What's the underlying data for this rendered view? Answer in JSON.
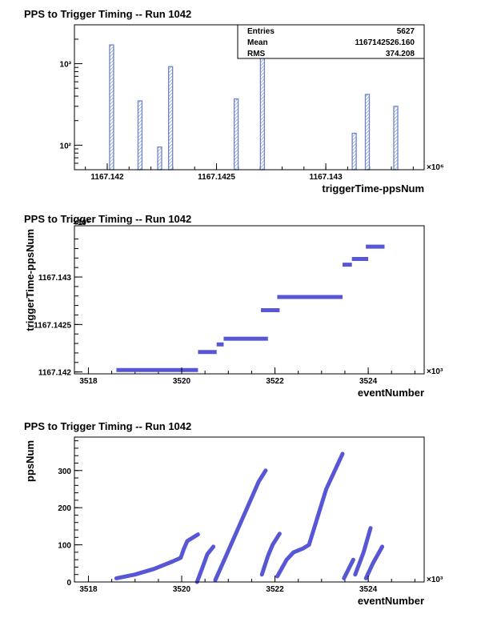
{
  "chart_data": [
    {
      "type": "histogram",
      "title": "PPS to Trigger Timing -- Run 1042",
      "xlabel": "triggerTime-ppsNum",
      "ylabel": "",
      "x_multiplier_label": "×10⁶",
      "xlim": [
        1167141.85,
        1167143.45
      ],
      "ylim": [
        50,
        3000
      ],
      "y_scale": "log",
      "x_ticks": [
        {
          "value": 1167142.0,
          "label": "1167.142"
        },
        {
          "value": 1167142.5,
          "label": "1167.1425"
        },
        {
          "value": 1167143.0,
          "label": "1167.143"
        }
      ],
      "y_ticks": [
        {
          "value": 100,
          "label": "10²"
        },
        {
          "value": 1000,
          "label": "10³"
        }
      ],
      "bins": [
        {
          "x": 1167142.02,
          "count": 1700
        },
        {
          "x": 1167142.15,
          "count": 350
        },
        {
          "x": 1167142.24,
          "count": 95
        },
        {
          "x": 1167142.29,
          "count": 920
        },
        {
          "x": 1167142.59,
          "count": 370
        },
        {
          "x": 1167142.71,
          "count": 1300
        },
        {
          "x": 1167143.13,
          "count": 140
        },
        {
          "x": 1167143.19,
          "count": 420
        },
        {
          "x": 1167143.32,
          "count": 300
        }
      ],
      "stats": [
        {
          "label": "Entries",
          "value": "5627"
        },
        {
          "label": "Mean",
          "value": "1167142526.160"
        },
        {
          "label": "RMS",
          "value": "374.208"
        }
      ],
      "color": "#6c86c7"
    },
    {
      "type": "scatter",
      "title": "PPS to Trigger Timing -- Run 1042",
      "xlabel": "eventNumber",
      "ylabel": "triggerTime-ppsNum",
      "x_multiplier_label": "×10³",
      "y_multiplier_label": "×10⁶",
      "xlim": [
        3517.7,
        3525.2
      ],
      "ylim": [
        1167141.98,
        1167143.54
      ],
      "x_ticks": [
        {
          "value": 3518,
          "label": "3518"
        },
        {
          "value": 3520,
          "label": "3520"
        },
        {
          "value": 3522,
          "label": "3522"
        },
        {
          "value": 3524,
          "label": "3524"
        }
      ],
      "y_ticks": [
        {
          "value": 1167142.0,
          "label": "1167.142"
        },
        {
          "value": 1167142.5,
          "label": "1167.1425"
        },
        {
          "value": 1167143.0,
          "label": "1167.143"
        }
      ],
      "segments": [
        {
          "x0": 3518.6,
          "x1": 3520.35,
          "y": 1167142.02
        },
        {
          "x0": 3520.35,
          "x1": 3520.75,
          "y": 1167142.21
        },
        {
          "x0": 3520.75,
          "x1": 3520.9,
          "y": 1167142.29
        },
        {
          "x0": 3520.9,
          "x1": 3521.85,
          "y": 1167142.35
        },
        {
          "x0": 3521.7,
          "x1": 3522.1,
          "y": 1167142.65
        },
        {
          "x0": 3522.05,
          "x1": 3523.45,
          "y": 1167142.79
        },
        {
          "x0": 3523.45,
          "x1": 3523.65,
          "y": 1167143.13
        },
        {
          "x0": 3523.65,
          "x1": 3524.0,
          "y": 1167143.19
        },
        {
          "x0": 3523.95,
          "x1": 3524.35,
          "y": 1167143.32
        }
      ],
      "color": "#5757d6"
    },
    {
      "type": "scatter",
      "title": "PPS to Trigger Timing -- Run 1042",
      "xlabel": "eventNumber",
      "ylabel": "ppsNum",
      "x_multiplier_label": "×10³",
      "xlim": [
        3517.7,
        3525.2
      ],
      "ylim": [
        0,
        390
      ],
      "x_ticks": [
        {
          "value": 3518,
          "label": "3518"
        },
        {
          "value": 3520,
          "label": "3520"
        },
        {
          "value": 3522,
          "label": "3522"
        },
        {
          "value": 3524,
          "label": "3524"
        }
      ],
      "y_ticks": [
        {
          "value": 0,
          "label": "0"
        },
        {
          "value": 100,
          "label": "100"
        },
        {
          "value": 200,
          "label": "200"
        },
        {
          "value": 300,
          "label": "300"
        }
      ],
      "curves": [
        [
          [
            3518.6,
            10
          ],
          [
            3519.0,
            20
          ],
          [
            3519.4,
            35
          ],
          [
            3519.8,
            55
          ],
          [
            3519.98,
            65
          ],
          [
            3520.05,
            90
          ],
          [
            3520.12,
            110
          ],
          [
            3520.35,
            128
          ]
        ],
        [
          [
            3520.33,
            0
          ],
          [
            3520.45,
            40
          ],
          [
            3520.55,
            75
          ],
          [
            3520.68,
            95
          ]
        ],
        [
          [
            3520.72,
            5
          ],
          [
            3520.95,
            70
          ],
          [
            3521.3,
            170
          ],
          [
            3521.65,
            270
          ],
          [
            3521.8,
            300
          ]
        ],
        [
          [
            3521.72,
            20
          ],
          [
            3521.85,
            70
          ],
          [
            3521.95,
            100
          ],
          [
            3522.1,
            130
          ]
        ],
        [
          [
            3522.05,
            15
          ],
          [
            3522.25,
            60
          ],
          [
            3522.4,
            80
          ],
          [
            3522.6,
            90
          ],
          [
            3522.73,
            100
          ],
          [
            3523.1,
            250
          ],
          [
            3523.45,
            345
          ]
        ],
        [
          [
            3523.48,
            10
          ],
          [
            3523.6,
            40
          ],
          [
            3523.68,
            60
          ]
        ],
        [
          [
            3523.72,
            20
          ],
          [
            3523.9,
            80
          ],
          [
            3524.05,
            145
          ]
        ],
        [
          [
            3523.95,
            10
          ],
          [
            3524.1,
            50
          ],
          [
            3524.3,
            95
          ]
        ]
      ],
      "color": "#5757d6"
    }
  ]
}
